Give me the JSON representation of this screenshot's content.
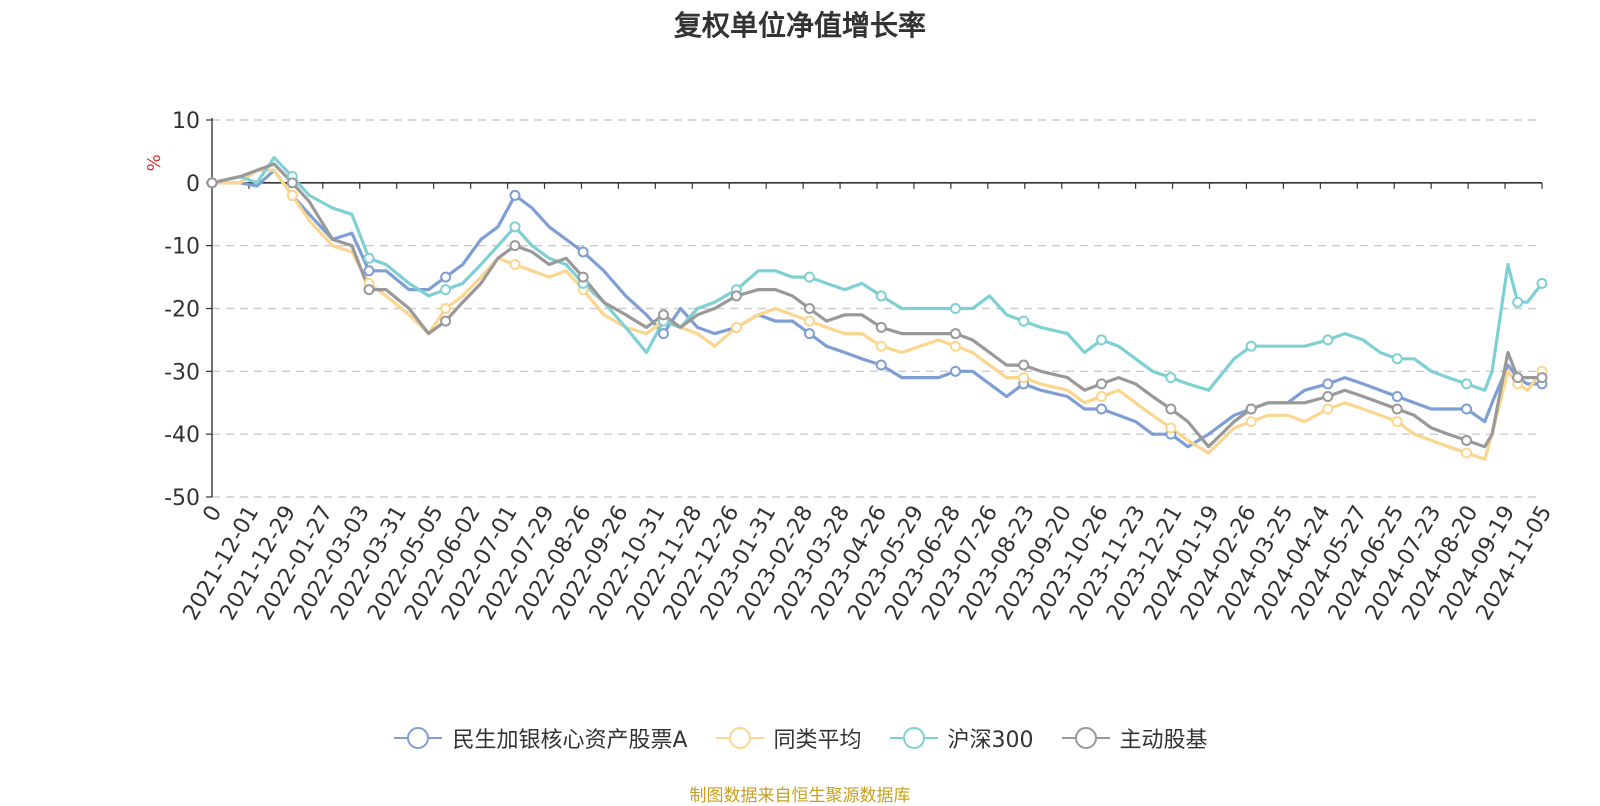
{
  "chart_data": {
    "type": "line",
    "title": "复权单位净值增长率",
    "ylabel": "%",
    "xlabel": "",
    "ylim": [
      -50,
      10
    ],
    "yticks": [
      10,
      0,
      -10,
      -20,
      -30,
      -40,
      -50
    ],
    "xticks": [
      "0",
      "2021-12-01",
      "2021-12-29",
      "2022-01-27",
      "2022-03-03",
      "2022-03-31",
      "2022-05-05",
      "2022-06-02",
      "2022-07-01",
      "2022-07-29",
      "2022-08-26",
      "2022-09-26",
      "2022-10-31",
      "2022-11-28",
      "2022-12-26",
      "2023-01-31",
      "2023-02-28",
      "2023-03-28",
      "2023-04-26",
      "2023-05-29",
      "2023-06-28",
      "2023-07-26",
      "2023-08-23",
      "2023-09-20",
      "2023-10-26",
      "2023-11-23",
      "2023-12-21",
      "2024-01-19",
      "2024-02-26",
      "2024-03-25",
      "2024-04-24",
      "2024-05-27",
      "2024-06-25",
      "2024-07-23",
      "2024-08-20",
      "2024-09-19",
      "2024-11-05"
    ],
    "x": [
      "2021-11-08",
      "2021-12-01",
      "2021-12-15",
      "2021-12-29",
      "2022-01-13",
      "2022-01-27",
      "2022-02-15",
      "2022-03-03",
      "2022-03-17",
      "2022-03-31",
      "2022-04-19",
      "2022-05-05",
      "2022-05-19",
      "2022-06-02",
      "2022-06-17",
      "2022-07-01",
      "2022-07-15",
      "2022-07-29",
      "2022-08-12",
      "2022-08-26",
      "2022-09-09",
      "2022-09-26",
      "2022-10-14",
      "2022-10-31",
      "2022-11-14",
      "2022-11-28",
      "2022-12-12",
      "2022-12-26",
      "2023-01-13",
      "2023-01-31",
      "2023-02-14",
      "2023-02-28",
      "2023-03-14",
      "2023-03-28",
      "2023-04-12",
      "2023-04-26",
      "2023-05-12",
      "2023-05-29",
      "2023-06-13",
      "2023-06-28",
      "2023-07-12",
      "2023-07-26",
      "2023-08-09",
      "2023-08-23",
      "2023-09-06",
      "2023-09-20",
      "2023-10-12",
      "2023-10-26",
      "2023-11-09",
      "2023-11-23",
      "2023-12-07",
      "2023-12-21",
      "2024-01-05",
      "2024-01-19",
      "2024-02-05",
      "2024-02-26",
      "2024-03-11",
      "2024-03-25",
      "2024-04-10",
      "2024-04-24",
      "2024-05-13",
      "2024-05-27",
      "2024-06-11",
      "2024-06-25",
      "2024-07-09",
      "2024-07-23",
      "2024-08-06",
      "2024-08-20",
      "2024-09-04",
      "2024-09-19",
      "2024-09-25",
      "2024-10-08",
      "2024-10-16",
      "2024-10-24",
      "2024-11-05"
    ],
    "series": [
      {
        "name": "民生加银核心资产股票A",
        "color": "#7f9fd4",
        "values": [
          0,
          0,
          -0.5,
          2,
          -2,
          -5,
          -9,
          -8,
          -14,
          -14,
          -17,
          -17,
          -15,
          -13,
          -9,
          -7,
          -2,
          -4,
          -7,
          -9,
          -11,
          -14,
          -18,
          -21,
          -24,
          -20,
          -23,
          -24,
          -23,
          -21,
          -22,
          -22,
          -24,
          -26,
          -27,
          -28,
          -29,
          -31,
          -31,
          -31,
          -30,
          -30,
          -32,
          -34,
          -32,
          -33,
          -34,
          -36,
          -36,
          -37,
          -38,
          -40,
          -40,
          -42,
          -40,
          -37,
          -36,
          -35,
          -35,
          -33,
          -32,
          -31,
          -32,
          -33,
          -34,
          -35,
          -36,
          -36,
          -36,
          -38,
          -35,
          -29,
          -31,
          -32,
          -32
        ]
      },
      {
        "name": "同类平均",
        "color": "#fcd68f",
        "values": [
          0,
          0,
          2,
          2,
          -2,
          -6,
          -10,
          -11,
          -16,
          -18,
          -21,
          -24,
          -20,
          -18,
          -15,
          -12,
          -13,
          -14,
          -15,
          -14,
          -17,
          -21,
          -23,
          -24,
          -22,
          -23,
          -24,
          -26,
          -23,
          -21,
          -20,
          -21,
          -22,
          -23,
          -24,
          -24,
          -26,
          -27,
          -26,
          -25,
          -26,
          -27,
          -29,
          -31,
          -31,
          -32,
          -33,
          -35,
          -34,
          -33,
          -35,
          -37,
          -39,
          -41,
          -43,
          -39,
          -38,
          -37,
          -37,
          -38,
          -36,
          -35,
          -36,
          -37,
          -38,
          -40,
          -41,
          -42,
          -43,
          -44,
          -40,
          -30,
          -32,
          -33,
          -30
        ]
      },
      {
        "name": "沪深300",
        "color": "#7fd0d4",
        "values": [
          0,
          1,
          0,
          4,
          1,
          -2,
          -4,
          -5,
          -12,
          -13,
          -16,
          -18,
          -17,
          -16,
          -13,
          -10,
          -7,
          -10,
          -12,
          -13,
          -16,
          -19,
          -23,
          -27,
          -22,
          -23,
          -20,
          -19,
          -17,
          -14,
          -14,
          -15,
          -15,
          -16,
          -17,
          -16,
          -18,
          -20,
          -20,
          -20,
          -20,
          -20,
          -18,
          -21,
          -22,
          -23,
          -24,
          -27,
          -25,
          -26,
          -28,
          -30,
          -31,
          -32,
          -33,
          -28,
          -26,
          -26,
          -26,
          -26,
          -25,
          -24,
          -25,
          -27,
          -28,
          -28,
          -30,
          -31,
          -32,
          -33,
          -30,
          -13,
          -19,
          -19,
          -16
        ]
      },
      {
        "name": "主动股基",
        "color": "#999999",
        "values": [
          0,
          1,
          2,
          3,
          0,
          -3,
          -9,
          -10,
          -17,
          -17,
          -20,
          -24,
          -22,
          -19,
          -16,
          -12,
          -10,
          -11,
          -13,
          -12,
          -15,
          -19,
          -21,
          -23,
          -21,
          -23,
          -21,
          -20,
          -18,
          -17,
          -17,
          -18,
          -20,
          -22,
          -21,
          -21,
          -23,
          -24,
          -24,
          -24,
          -24,
          -25,
          -27,
          -29,
          -29,
          -30,
          -31,
          -33,
          -32,
          -31,
          -32,
          -34,
          -36,
          -38,
          -42,
          -38,
          -36,
          -35,
          -35,
          -35,
          -34,
          -33,
          -34,
          -35,
          -36,
          -37,
          -39,
          -40,
          -41,
          -42,
          -40,
          -27,
          -31,
          -31,
          -31
        ]
      }
    ]
  },
  "legend": {
    "position": "bottom-center"
  },
  "source_note": "制图数据来自恒生聚源数据库"
}
